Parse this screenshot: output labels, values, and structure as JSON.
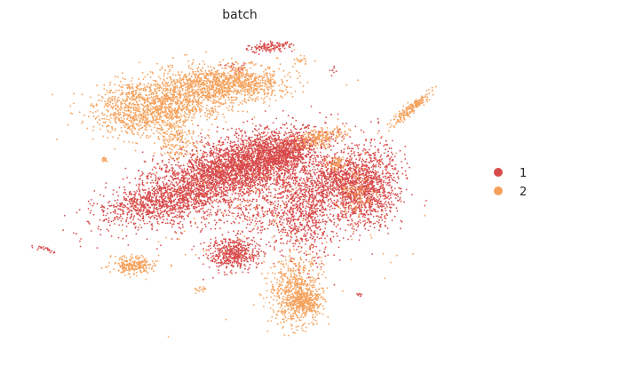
{
  "chart_data": {
    "type": "scatter",
    "title": "batch",
    "xlabel": "",
    "ylabel": "",
    "grid": false,
    "axes_visible": false,
    "legend_placement": "right",
    "legend": [
      {
        "label": "1",
        "color": "#d84b4b"
      },
      {
        "label": "2",
        "color": "#f5a15b"
      }
    ],
    "series": [
      {
        "name": "1",
        "color": "#d84b4b",
        "clusters": [
          {
            "x": 240,
            "y": 200,
            "sx": 55,
            "sy": 18,
            "rot": -0.35,
            "n": 2400
          },
          {
            "x": 170,
            "y": 230,
            "sx": 30,
            "sy": 8,
            "rot": -0.15,
            "n": 450
          },
          {
            "x": 290,
            "y": 180,
            "sx": 35,
            "sy": 15,
            "rot": -0.2,
            "n": 1400
          },
          {
            "x": 320,
            "y": 170,
            "sx": 15,
            "sy": 8,
            "rot": -0.5,
            "n": 400
          },
          {
            "x": 345,
            "y": 230,
            "sx": 16,
            "sy": 30,
            "rot": 0,
            "n": 700
          },
          {
            "x": 410,
            "y": 210,
            "sx": 20,
            "sy": 22,
            "rot": 0.2,
            "n": 1300
          },
          {
            "x": 375,
            "y": 200,
            "sx": 12,
            "sy": 12,
            "rot": 0,
            "n": 300
          },
          {
            "x": 262,
            "y": 286,
            "sx": 14,
            "sy": 9,
            "rot": 0,
            "n": 500
          },
          {
            "x": 300,
            "y": 235,
            "sx": 40,
            "sy": 20,
            "rot": 0,
            "n": 500
          },
          {
            "x": 305,
            "y": 53,
            "sx": 12,
            "sy": 3,
            "rot": -0.1,
            "n": 120
          },
          {
            "x": 52,
            "y": 281,
            "sx": 7,
            "sy": 1.5,
            "rot": 0.2,
            "n": 25
          },
          {
            "x": 405,
            "y": 332,
            "sx": 2,
            "sy": 1,
            "rot": 0,
            "n": 8
          },
          {
            "x": 375,
            "y": 80,
            "sx": 2,
            "sy": 3,
            "rot": 0,
            "n": 8
          },
          {
            "x": 265,
            "y": 75,
            "sx": 6,
            "sy": 3,
            "rot": 0,
            "n": 20
          }
        ]
      },
      {
        "name": "2",
        "color": "#f5a15b",
        "clusters": [
          {
            "x": 210,
            "y": 105,
            "sx": 45,
            "sy": 14,
            "rot": -0.15,
            "n": 1400
          },
          {
            "x": 165,
            "y": 130,
            "sx": 30,
            "sy": 12,
            "rot": 0,
            "n": 600
          },
          {
            "x": 270,
            "y": 92,
            "sx": 28,
            "sy": 9,
            "rot": 0.1,
            "n": 500
          },
          {
            "x": 200,
            "y": 160,
            "sx": 12,
            "sy": 10,
            "rot": 0,
            "n": 150
          },
          {
            "x": 333,
            "y": 330,
            "sx": 15,
            "sy": 20,
            "rot": 0,
            "n": 700
          },
          {
            "x": 345,
            "y": 340,
            "sx": 8,
            "sy": 6,
            "rot": 0,
            "n": 200
          },
          {
            "x": 150,
            "y": 298,
            "sx": 12,
            "sy": 5,
            "rot": 0,
            "n": 250
          },
          {
            "x": 362,
            "y": 155,
            "sx": 15,
            "sy": 5,
            "rot": -0.2,
            "n": 200
          },
          {
            "x": 463,
            "y": 122,
            "sx": 15,
            "sy": 2.5,
            "rot": -0.7,
            "n": 200
          },
          {
            "x": 380,
            "y": 185,
            "sx": 5,
            "sy": 4,
            "rot": 0,
            "n": 60
          },
          {
            "x": 398,
            "y": 220,
            "sx": 10,
            "sy": 15,
            "rot": 0,
            "n": 100
          },
          {
            "x": 117,
            "y": 180,
            "sx": 2,
            "sy": 2,
            "rot": 0,
            "n": 15
          },
          {
            "x": 147,
            "y": 102,
            "sx": 6,
            "sy": 4,
            "rot": 0,
            "n": 40
          },
          {
            "x": 225,
            "y": 325,
            "sx": 3,
            "sy": 2,
            "rot": 0,
            "n": 15
          },
          {
            "x": 340,
            "y": 68,
            "sx": 4,
            "sy": 2,
            "rot": 0,
            "n": 15
          },
          {
            "x": 300,
            "y": 230,
            "sx": 70,
            "sy": 50,
            "rot": 0,
            "n": 150
          }
        ]
      }
    ]
  }
}
